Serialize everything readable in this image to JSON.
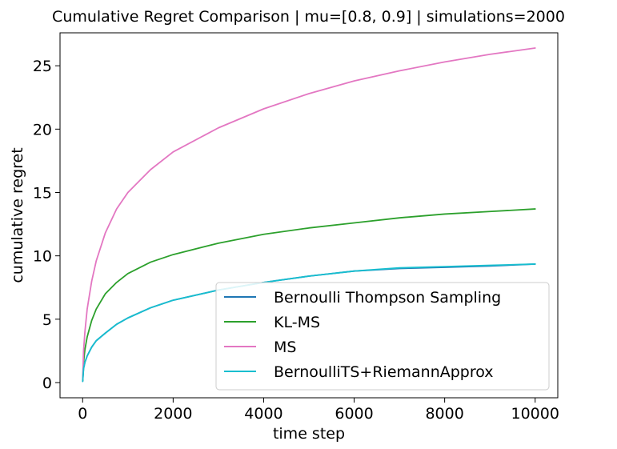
{
  "chart_data": {
    "type": "line",
    "title": "Cumulative Regret Comparison | mu=[0.8, 0.9] | simulations=2000",
    "xlabel": "time step",
    "ylabel": "cumulative regret",
    "xlim": [
      -500,
      10500
    ],
    "ylim": [
      -1.2,
      27.6
    ],
    "xticks": [
      0,
      2000,
      4000,
      6000,
      8000,
      10000
    ],
    "xtick_labels": [
      "0",
      "2000",
      "4000",
      "6000",
      "8000",
      "10000"
    ],
    "yticks": [
      0,
      5,
      10,
      15,
      20,
      25
    ],
    "ytick_labels": [
      "0",
      "5",
      "10",
      "15",
      "20",
      "25"
    ],
    "grid": false,
    "legend_position": "lower-right",
    "x": [
      1,
      20,
      50,
      100,
      200,
      300,
      500,
      750,
      1000,
      1500,
      2000,
      3000,
      4000,
      5000,
      6000,
      7000,
      8000,
      9000,
      10000
    ],
    "series": [
      {
        "name": "Bernoulli Thompson Sampling",
        "color": "#1f77b4",
        "values": [
          0.1,
          1.1,
          1.6,
          2.1,
          2.8,
          3.3,
          3.9,
          4.6,
          5.1,
          5.9,
          6.5,
          7.3,
          7.9,
          8.4,
          8.8,
          9.0,
          9.1,
          9.2,
          9.35
        ]
      },
      {
        "name": "KL-MS",
        "color": "#2ca02c",
        "values": [
          0.15,
          1.6,
          2.6,
          3.6,
          4.9,
          5.8,
          7.0,
          7.9,
          8.6,
          9.5,
          10.1,
          11.0,
          11.7,
          12.2,
          12.6,
          13.0,
          13.3,
          13.5,
          13.7
        ]
      },
      {
        "name": "MS",
        "color": "#e377c2",
        "values": [
          0.2,
          2.5,
          4.0,
          5.8,
          8.0,
          9.6,
          11.8,
          13.7,
          15.0,
          16.8,
          18.2,
          20.1,
          21.6,
          22.8,
          23.8,
          24.6,
          25.3,
          25.9,
          26.4
        ]
      },
      {
        "name": "BernoulliTS+RiemannApprox",
        "color": "#17becf",
        "values": [
          0.1,
          1.1,
          1.6,
          2.1,
          2.8,
          3.3,
          3.9,
          4.6,
          5.1,
          5.9,
          6.5,
          7.3,
          7.9,
          8.4,
          8.8,
          9.05,
          9.15,
          9.25,
          9.35
        ]
      }
    ]
  }
}
